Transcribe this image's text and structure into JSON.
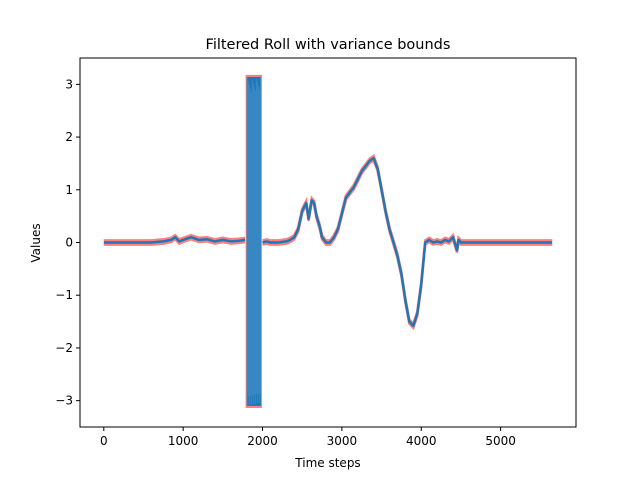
{
  "chart_data": {
    "type": "line",
    "title": "Filtered Roll with variance bounds",
    "xlabel": "Time steps",
    "ylabel": "Values",
    "xlim": [
      -300,
      5950
    ],
    "ylim": [
      -3.5,
      3.5
    ],
    "xticks": [
      0,
      1000,
      2000,
      3000,
      4000,
      5000
    ],
    "yticks": [
      -3,
      -2,
      -1,
      0,
      1,
      2,
      3
    ],
    "x_tick_labels": [
      "0",
      "1000",
      "2000",
      "3000",
      "4000",
      "5000"
    ],
    "y_tick_labels": [
      "−3",
      "−2",
      "−1",
      "0",
      "1",
      "2",
      "3"
    ],
    "grid": false,
    "legend": "none",
    "series": [
      {
        "role": "filtered-value",
        "color": "#1f77b4",
        "x": [
          0,
          200,
          400,
          600,
          750,
          850,
          900,
          950,
          1000,
          1100,
          1200,
          1300,
          1400,
          1500,
          1600,
          1700,
          1780,
          1830,
          2000,
          2050,
          2100,
          2200,
          2300,
          2350,
          2400,
          2450,
          2500,
          2550,
          2580,
          2620,
          2650,
          2680,
          2720,
          2750,
          2800,
          2850,
          2900,
          2950,
          3000,
          3050,
          3100,
          3150,
          3200,
          3250,
          3300,
          3350,
          3400,
          3450,
          3500,
          3550,
          3600,
          3650,
          3700,
          3750,
          3800,
          3850,
          3900,
          3950,
          4000,
          4050,
          4100,
          4150,
          4200,
          4250,
          4300,
          4350,
          4400,
          4450,
          4470,
          4500,
          5000,
          5650
        ],
        "y": [
          0.0,
          0.0,
          0.0,
          0.0,
          0.02,
          0.05,
          0.1,
          0.02,
          0.05,
          0.1,
          0.05,
          0.06,
          0.02,
          0.05,
          0.02,
          0.03,
          0.05,
          0.0,
          0.0,
          0.02,
          0.0,
          0.0,
          0.02,
          0.05,
          0.1,
          0.25,
          0.6,
          0.75,
          0.45,
          0.8,
          0.75,
          0.5,
          0.3,
          0.1,
          0.0,
          0.0,
          0.1,
          0.25,
          0.55,
          0.85,
          0.95,
          1.05,
          1.2,
          1.35,
          1.45,
          1.55,
          1.6,
          1.4,
          1.0,
          0.6,
          0.25,
          0.0,
          -0.25,
          -0.6,
          -1.1,
          -1.5,
          -1.58,
          -1.35,
          -0.8,
          0.0,
          0.05,
          0.0,
          0.02,
          0.0,
          0.05,
          0.02,
          0.1,
          -0.15,
          0.05,
          0.0,
          0.0,
          0.0
        ]
      }
    ],
    "oscillation_band": {
      "x_start": 1800,
      "x_end": 1980,
      "y_min": -3.1,
      "y_max": 3.14,
      "color": "#1f77b4"
    },
    "variance_bound_color": "#ff7f7f",
    "variance_half_width": 0.04
  }
}
